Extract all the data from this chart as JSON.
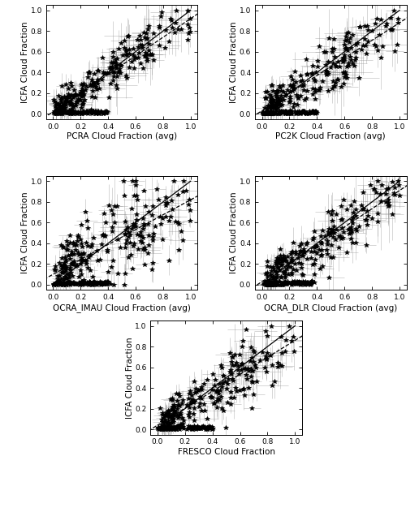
{
  "subplots": [
    {
      "xlabel": "PCRA Cloud Fraction (avg)",
      "ylabel": "ICFA Cloud Fraction"
    },
    {
      "xlabel": "PC2K Cloud Fraction (avg)",
      "ylabel": "ICFA Cloud Fraction"
    },
    {
      "xlabel": "OCRA_IMAU Cloud Fraction (avg)",
      "ylabel": "ICFA Cloud Fraction"
    },
    {
      "xlabel": "OCRA_DLR Cloud Fraction (avg)",
      "ylabel": "ICFA Cloud Fraction"
    },
    {
      "xlabel": "FRESCO Cloud Fraction",
      "ylabel": "ICFA Cloud Fraction"
    }
  ],
  "xlim": [
    -0.05,
    1.05
  ],
  "ylim": [
    -0.05,
    1.05
  ],
  "xticks": [
    0.0,
    0.2,
    0.4,
    0.6,
    0.8,
    1.0
  ],
  "yticks": [
    0.0,
    0.2,
    0.4,
    0.6,
    0.8,
    1.0
  ],
  "marker": "*",
  "marker_size": 4,
  "line_color": "black",
  "error_bar_color": "#888888",
  "background_color": "white",
  "tick_label_fontsize": 6.5,
  "axis_label_fontsize": 7.5,
  "figsize": [
    5.16,
    6.31
  ],
  "dpi": 100,
  "seed": 42,
  "n_points": 350
}
